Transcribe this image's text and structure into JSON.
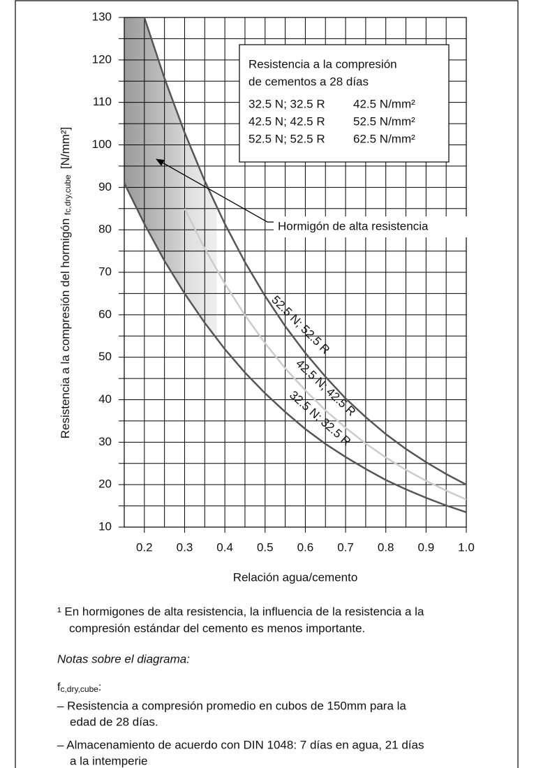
{
  "chart_data": {
    "type": "line",
    "y_label": "Resistencia a la compresión del hormigón ",
    "y_label_sub": "fc,dry,cube",
    "y_label_unit": "[N/mm²]",
    "x_label": "Relación agua/cemento",
    "xlim": [
      0.15,
      1.0
    ],
    "ylim": [
      10,
      130
    ],
    "xticks": [
      0.2,
      0.3,
      0.4,
      0.5,
      0.6,
      0.7,
      0.8,
      0.9,
      {
        "value": 1,
        "label": "1.0"
      }
    ],
    "yticks": [
      10,
      20,
      30,
      40,
      50,
      60,
      70,
      80,
      90,
      100,
      110,
      120,
      130
    ],
    "xminor": [
      0.25,
      0.35,
      0.45,
      0.55,
      0.65,
      0.75,
      0.85,
      0.95
    ],
    "yminor": [
      15,
      25,
      35,
      45,
      55,
      65,
      75,
      85,
      95,
      105,
      115,
      125
    ],
    "grid": true,
    "legend_title": [
      "Resistencia a la compresión",
      "de cementos a 28 días"
    ],
    "series": [
      {
        "name": "32.5 N; 32.5 R",
        "strength": "42.5 N/mm²",
        "color": "#555555",
        "x": [
          0.15,
          0.2,
          0.25,
          0.3,
          0.35,
          0.4,
          0.45,
          0.5,
          0.55,
          0.6,
          0.65,
          0.7,
          0.75,
          0.8,
          0.85,
          0.9,
          0.95,
          1.0
        ],
        "values": [
          91,
          81.4,
          72.7,
          65.0,
          58.1,
          51.9,
          46.4,
          41.5,
          37.1,
          33.1,
          29.6,
          26.5,
          23.7,
          21.1,
          18.9,
          16.9,
          15.1,
          13.5
        ]
      },
      {
        "name": "42.5 N; 42.5 R",
        "strength": "52.5 N/mm²",
        "color": "#cccccc",
        "x": [
          0.3,
          0.35,
          0.4,
          0.45,
          0.5,
          0.55,
          0.6,
          0.65,
          0.7,
          0.75,
          0.8,
          0.85,
          0.9,
          0.95,
          1.0
        ],
        "values": [
          85,
          75.6,
          67.3,
          59.9,
          53.3,
          47.4,
          42.2,
          37.5,
          33.4,
          29.7,
          26.4,
          23.5,
          20.9,
          18.6,
          16.5
        ]
      },
      {
        "name": "52.5 N; 52.5 R",
        "strength": "62.5 N/mm²",
        "color": "#555555",
        "x": [
          0.2,
          0.25,
          0.3,
          0.35,
          0.4,
          0.45,
          0.5,
          0.55,
          0.6,
          0.65,
          0.7,
          0.75,
          0.8,
          0.85,
          0.9,
          0.95,
          1.0
        ],
        "values": [
          130,
          115.7,
          102.9,
          91.5,
          81.4,
          72.4,
          64.4,
          57.3,
          51.0,
          45.4,
          40.3,
          35.9,
          31.9,
          28.4,
          25.3,
          22.5,
          20.0
        ]
      }
    ],
    "annotation": {
      "text": "Hormigón de alta resistencia",
      "highlight_x": [
        0.15,
        0.38
      ]
    }
  },
  "footnote": [
    "¹ En hormigones de alta resistencia, la influencia de la resistencia a la",
    "compresión estándar del cemento es menos importante."
  ],
  "notes": {
    "heading": "Notas sobre el diagrama:",
    "symbol": "f",
    "symbol_sub": "c,dry,cube",
    "symbol_end": ":",
    "items": [
      [
        "– Resistencia a compresión promedio en cubos de 150mm para la",
        "edad de 28 días."
      ],
      [
        "– Almacenamiento de acuerdo con DIN 1048: 7 días en agua, 21 días",
        "a la intemperie"
      ]
    ]
  }
}
